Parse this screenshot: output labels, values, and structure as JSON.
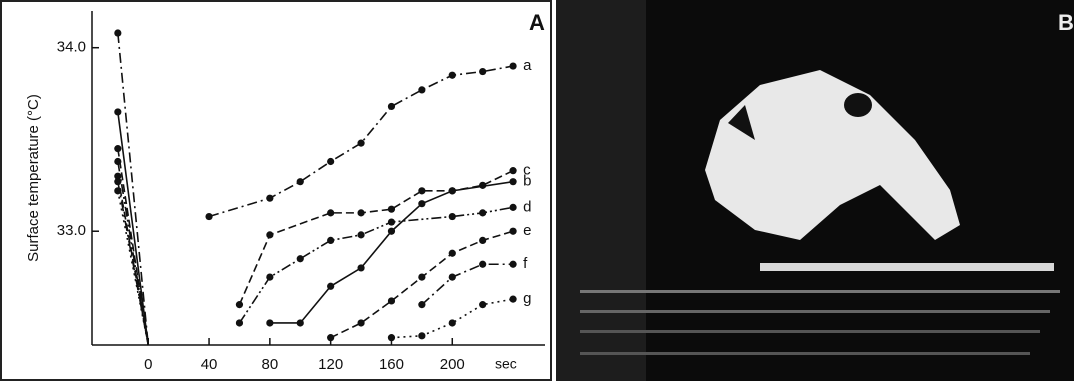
{
  "chart_data": {
    "type": "line",
    "panel_label": "A",
    "image_panel_label": "B",
    "ylabel": "Surface temperature (°C)",
    "xlabel": "sec",
    "xlim": [
      -37,
      261
    ],
    "ylim": [
      32.38,
      34.2
    ],
    "xticks": [
      0,
      40,
      80,
      120,
      160,
      200
    ],
    "yticks": [
      {
        "value": 33,
        "label": "33.0"
      },
      {
        "value": 34,
        "label": "34.0"
      }
    ],
    "series": [
      {
        "name": "a",
        "color": "#111111",
        "style": "dash-dot",
        "x": [
          -20,
          0,
          20,
          40,
          80,
          100,
          120,
          140,
          160,
          180,
          200,
          220,
          240
        ],
        "values": [
          34.08,
          32.38,
          null,
          33.08,
          33.18,
          33.27,
          33.38,
          33.48,
          33.68,
          33.77,
          33.85,
          33.87,
          33.9
        ]
      },
      {
        "name": "c",
        "color": "#111111",
        "style": "dashed",
        "x": [
          -20,
          0,
          40,
          60,
          80,
          120,
          140,
          160,
          180,
          200,
          220,
          240
        ],
        "values": [
          33.45,
          32.38,
          null,
          32.6,
          32.98,
          33.1,
          33.1,
          33.12,
          33.22,
          33.22,
          33.25,
          33.33
        ]
      },
      {
        "name": "b",
        "color": "#111111",
        "style": "solid",
        "x": [
          -20,
          0,
          60,
          80,
          100,
          120,
          140,
          160,
          180,
          200,
          240
        ],
        "values": [
          33.65,
          32.38,
          null,
          32.5,
          32.5,
          32.7,
          32.8,
          33.0,
          33.15,
          33.22,
          33.27
        ]
      },
      {
        "name": "d",
        "color": "#111111",
        "style": "dash-dot-dot",
        "x": [
          -20,
          0,
          40,
          60,
          80,
          100,
          120,
          140,
          160,
          200,
          220,
          240
        ],
        "values": [
          33.38,
          32.38,
          null,
          32.5,
          32.75,
          32.85,
          32.95,
          32.98,
          33.05,
          33.08,
          33.1,
          33.13
        ]
      },
      {
        "name": "e",
        "color": "#111111",
        "style": "dashed",
        "x": [
          -20,
          0,
          100,
          120,
          140,
          160,
          180,
          200,
          220,
          240
        ],
        "values": [
          33.3,
          32.38,
          null,
          32.42,
          32.5,
          32.62,
          32.75,
          32.88,
          32.95,
          33.0
        ]
      },
      {
        "name": "f",
        "color": "#111111",
        "style": "dash-dot",
        "x": [
          -20,
          0,
          160,
          180,
          200,
          220,
          240
        ],
        "values": [
          33.27,
          32.38,
          null,
          32.6,
          32.75,
          32.82,
          32.82
        ]
      },
      {
        "name": "g",
        "color": "#111111",
        "style": "dotted",
        "x": [
          -20,
          0,
          140,
          160,
          180,
          200,
          220,
          240
        ],
        "values": [
          33.22,
          32.38,
          null,
          32.42,
          32.43,
          32.5,
          32.6,
          32.63
        ]
      }
    ]
  }
}
